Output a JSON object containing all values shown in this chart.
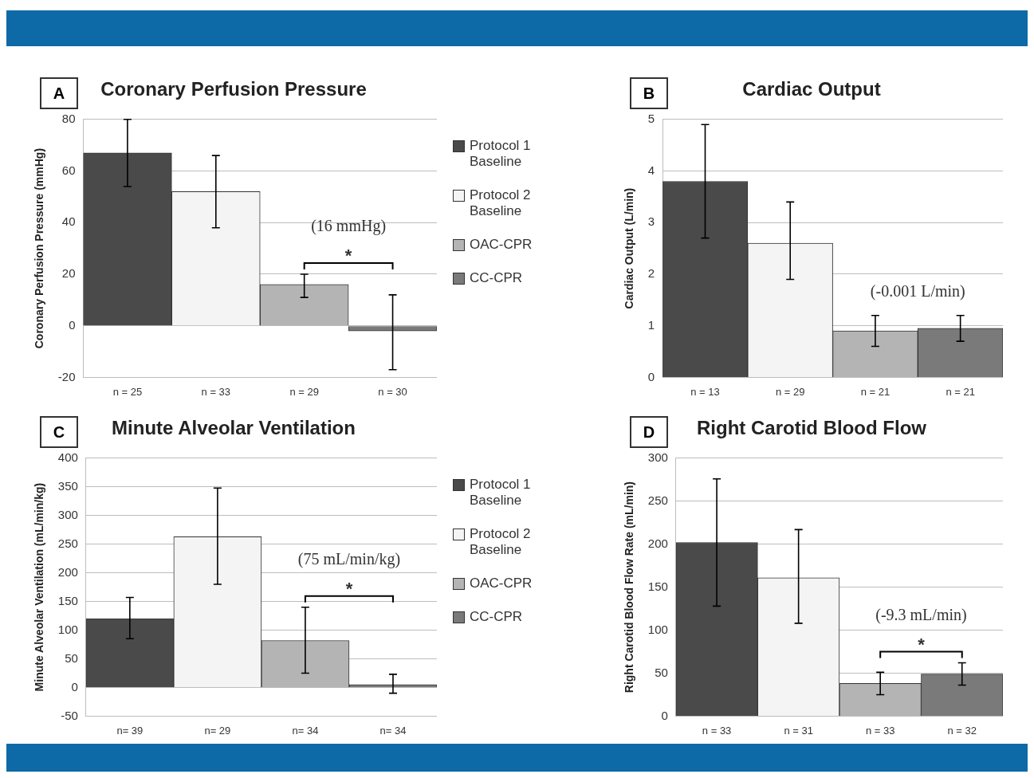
{
  "chart_data": [
    {
      "type": "bar",
      "title": "Coronary Perfusion Pressure",
      "ylabel": "Coronary Perfusion Pressure (mmHg)",
      "categories": [
        "n = 25",
        "n = 33",
        "n = 29",
        "n = 30"
      ],
      "ylim": [
        -20,
        80
      ],
      "yticks": [
        -20,
        0,
        20,
        40,
        60,
        80
      ],
      "grid": "y",
      "legend": "right",
      "annotations": [
        "A",
        "(16 mmHg)",
        "*"
      ],
      "series": [
        {
          "name": "Protocol 1 Baseline",
          "color": "#4a4a4a",
          "values": [
            67,
            null,
            null,
            null
          ],
          "errors": [
            [
              54,
              80
            ],
            null,
            null,
            null
          ]
        },
        {
          "name": "Protocol 2 Baseline",
          "color": "#f4f4f4",
          "values": [
            null,
            52,
            null,
            null
          ],
          "errors": [
            null,
            [
              38,
              66
            ],
            null,
            null
          ]
        },
        {
          "name": "OAC-CPR",
          "color": "#b4b4b4",
          "values": [
            null,
            null,
            16,
            null
          ],
          "errors": [
            null,
            null,
            [
              11,
              20
            ],
            null
          ]
        },
        {
          "name": "CC-CPR",
          "color": "#7a7a7a",
          "values": [
            null,
            null,
            null,
            -2
          ],
          "errors": [
            null,
            null,
            null,
            [
              -17,
              12
            ]
          ]
        }
      ]
    },
    {
      "type": "bar",
      "title": "Cardiac Output",
      "ylabel": "Cardiac Output (L/min)",
      "categories": [
        "n = 13",
        "n = 29",
        "n = 21",
        "n = 21"
      ],
      "ylim": [
        0,
        5
      ],
      "yticks": [
        0,
        1,
        2,
        3,
        4,
        5
      ],
      "grid": "y",
      "annotations": [
        "B",
        "(-0.001 L/min)"
      ],
      "series": [
        {
          "color": "#4a4a4a",
          "values": [
            3.8,
            null,
            null,
            null
          ],
          "errors": [
            [
              2.7,
              4.9
            ],
            null,
            null,
            null
          ]
        },
        {
          "color": "#f4f4f4",
          "values": [
            null,
            2.6,
            null,
            null
          ],
          "errors": [
            null,
            [
              1.9,
              3.4
            ],
            null,
            null
          ]
        },
        {
          "color": "#b4b4b4",
          "values": [
            null,
            null,
            0.9,
            null
          ],
          "errors": [
            null,
            null,
            [
              0.6,
              1.2
            ],
            null
          ]
        },
        {
          "color": "#7a7a7a",
          "values": [
            null,
            null,
            null,
            0.95
          ],
          "errors": [
            null,
            null,
            null,
            [
              0.7,
              1.2
            ]
          ]
        }
      ]
    },
    {
      "type": "bar",
      "title": "Minute Alveolar Ventilation",
      "ylabel": "Minute Alveolar Ventilation (mL/min/kg)",
      "categories": [
        "n= 39",
        "n= 29",
        "n= 34",
        "n= 34"
      ],
      "ylim": [
        -50,
        400
      ],
      "yticks": [
        -50,
        0,
        50,
        100,
        150,
        200,
        250,
        300,
        350,
        400
      ],
      "grid": "y",
      "legend": "right",
      "annotations": [
        "C",
        "(75 mL/min/kg)",
        "*"
      ],
      "series": [
        {
          "name": "Protocol 1 Baseline",
          "color": "#4a4a4a",
          "values": [
            120,
            null,
            null,
            null
          ],
          "errors": [
            [
              85,
              157
            ],
            null,
            null,
            null
          ]
        },
        {
          "name": "Protocol 2 Baseline",
          "color": "#f4f4f4",
          "values": [
            null,
            263,
            null,
            null
          ],
          "errors": [
            null,
            [
              180,
              348
            ],
            null,
            null
          ]
        },
        {
          "name": "OAC-CPR",
          "color": "#b4b4b4",
          "values": [
            null,
            null,
            82,
            null
          ],
          "errors": [
            null,
            null,
            [
              25,
              140
            ],
            null
          ]
        },
        {
          "name": "CC-CPR",
          "color": "#7a7a7a",
          "values": [
            null,
            null,
            null,
            5
          ],
          "errors": [
            null,
            null,
            null,
            [
              -10,
              23
            ]
          ]
        }
      ]
    },
    {
      "type": "bar",
      "title": "Right Carotid Blood Flow",
      "ylabel": "Right Carotid Blood Flow Rate (mL/min)",
      "categories": [
        "n = 33",
        "n = 31",
        "n = 33",
        "n = 32"
      ],
      "ylim": [
        0,
        300
      ],
      "yticks": [
        0,
        50,
        100,
        150,
        200,
        250,
        300
      ],
      "grid": "y",
      "annotations": [
        "D",
        "(-9.3 mL/min)",
        "*"
      ],
      "series": [
        {
          "color": "#4a4a4a",
          "values": [
            202,
            null,
            null,
            null
          ],
          "errors": [
            [
              128,
              276
            ],
            null,
            null,
            null
          ]
        },
        {
          "color": "#f4f4f4",
          "values": [
            null,
            161,
            null,
            null
          ],
          "errors": [
            null,
            [
              108,
              217
            ],
            null,
            null
          ]
        },
        {
          "color": "#b4b4b4",
          "values": [
            null,
            null,
            38,
            null
          ],
          "errors": [
            null,
            null,
            [
              25,
              51
            ],
            null
          ]
        },
        {
          "color": "#7a7a7a",
          "values": [
            null,
            null,
            null,
            49
          ],
          "errors": [
            null,
            null,
            null,
            [
              36,
              62
            ]
          ]
        }
      ]
    }
  ]
}
